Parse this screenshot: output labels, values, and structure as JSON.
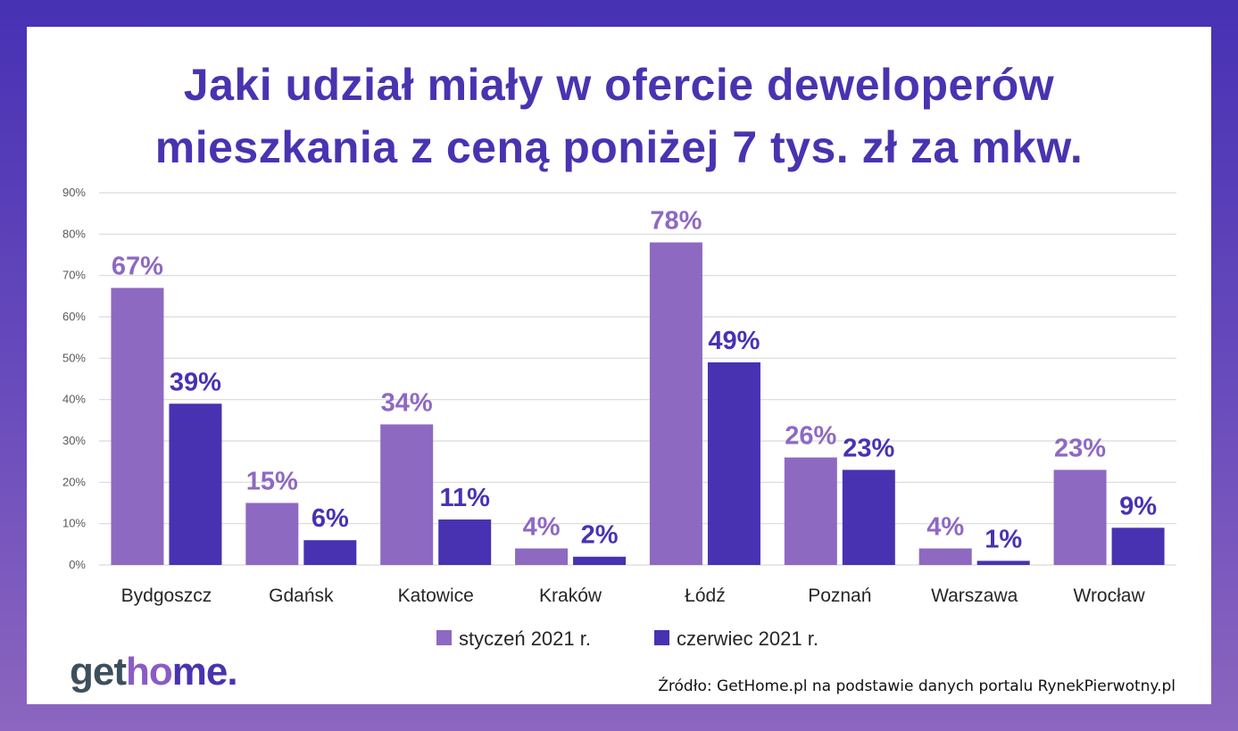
{
  "title_lines": [
    "Jaki udział miały w ofercie deweloperów",
    "mieszkania z ceną poniżej 7 tys. zł za mkw."
  ],
  "source": "Źródło: GetHome.pl na podstawie danych portalu RynekPierwotny.pl",
  "logo": "gethome.",
  "colors": {
    "series1": "#8e69c2",
    "series2": "#4832b2",
    "title": "#4a33b0"
  },
  "chart_data": {
    "type": "bar",
    "title": "Jaki udział miały w ofercie deweloperów mieszkania z ceną poniżej 7 tys. zł za mkw.",
    "categories": [
      "Bydgoszcz",
      "Gdańsk",
      "Katowice",
      "Kraków",
      "Łódź",
      "Poznań",
      "Warszawa",
      "Wrocław"
    ],
    "series": [
      {
        "name": "styczeń 2021 r.",
        "values": [
          67,
          15,
          34,
          4,
          78,
          26,
          4,
          23
        ],
        "labels": [
          "67%",
          "15%",
          "34%",
          "4%",
          "78%",
          "26%",
          "4%",
          "23%"
        ]
      },
      {
        "name": "czerwiec 2021 r.",
        "values": [
          39,
          6,
          11,
          2,
          49,
          23,
          1,
          9
        ],
        "labels": [
          "39%",
          "6%",
          "11%",
          "2%",
          "49%",
          "23%",
          "1%",
          "9%"
        ]
      }
    ],
    "ylim": [
      0,
      90
    ],
    "yticks": [
      "0%",
      "10%",
      "20%",
      "30%",
      "40%",
      "50%",
      "60%",
      "70%",
      "80%",
      "90%"
    ],
    "grid": true,
    "legend": "bottom"
  }
}
